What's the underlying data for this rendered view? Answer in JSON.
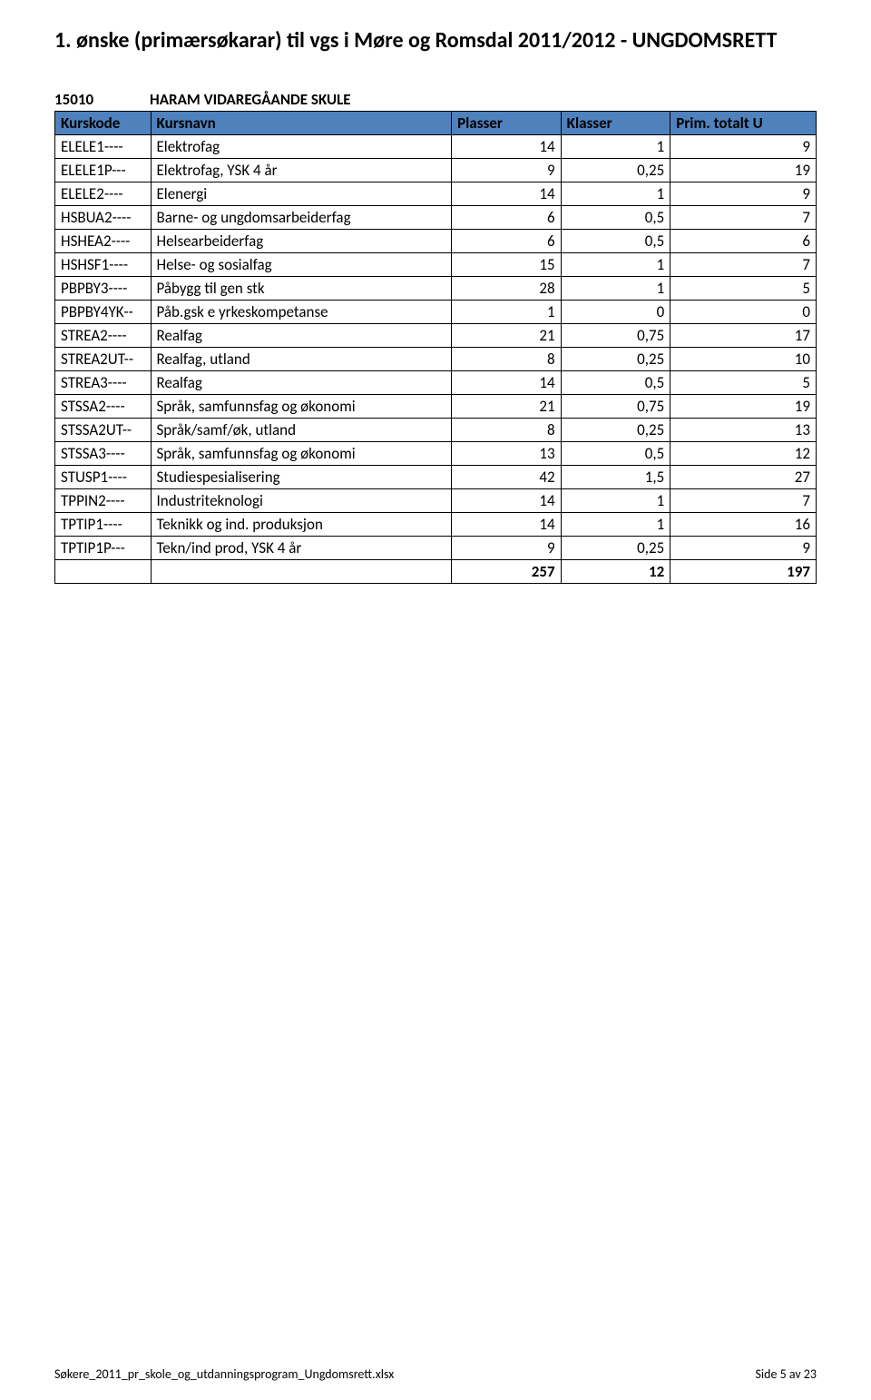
{
  "doc": {
    "title": "1. ønske (primærsøkarar) til vgs i Møre og Romsdal 2011/2012 - UNGDOMSRETT",
    "title_fontsize": 24,
    "title_weight": "bold",
    "school_code": "15010",
    "school_name": "HARAM VIDAREGÅANDE SKULE"
  },
  "colors": {
    "header_bg": "#4f81bd",
    "border": "#000000",
    "text": "#000000",
    "background": "#ffffff"
  },
  "table": {
    "columns": {
      "kurskode": "Kurskode",
      "kursnavn": "Kursnavn",
      "plasser": "Plasser",
      "klasser": "Klasser",
      "prim": "Prim. totalt U"
    },
    "rows": [
      {
        "kode": "ELELE1----",
        "navn": "Elektrofag",
        "plasser": "14",
        "klasser": "1",
        "prim": "9"
      },
      {
        "kode": "ELELE1P---",
        "navn": "Elektrofag, YSK 4 år",
        "plasser": "9",
        "klasser": "0,25",
        "prim": "19"
      },
      {
        "kode": "ELELE2----",
        "navn": "Elenergi",
        "plasser": "14",
        "klasser": "1",
        "prim": "9"
      },
      {
        "kode": "HSBUA2----",
        "navn": "Barne- og ungdomsarbeiderfag",
        "plasser": "6",
        "klasser": "0,5",
        "prim": "7"
      },
      {
        "kode": "HSHEA2----",
        "navn": "Helsearbeiderfag",
        "plasser": "6",
        "klasser": "0,5",
        "prim": "6"
      },
      {
        "kode": "HSHSF1----",
        "navn": "Helse- og sosialfag",
        "plasser": "15",
        "klasser": "1",
        "prim": "7"
      },
      {
        "kode": "PBPBY3----",
        "navn": "Påbygg til gen stk",
        "plasser": "28",
        "klasser": "1",
        "prim": "5"
      },
      {
        "kode": "PBPBY4YK--",
        "navn": "Påb.gsk e yrkeskompetanse",
        "plasser": "1",
        "klasser": "0",
        "prim": "0"
      },
      {
        "kode": "STREA2----",
        "navn": "Realfag",
        "plasser": "21",
        "klasser": "0,75",
        "prim": "17"
      },
      {
        "kode": "STREA2UT--",
        "navn": "Realfag, utland",
        "plasser": "8",
        "klasser": "0,25",
        "prim": "10"
      },
      {
        "kode": "STREA3----",
        "navn": "Realfag",
        "plasser": "14",
        "klasser": "0,5",
        "prim": "5"
      },
      {
        "kode": "STSSA2----",
        "navn": "Språk, samfunnsfag og økonomi",
        "plasser": "21",
        "klasser": "0,75",
        "prim": "19"
      },
      {
        "kode": "STSSA2UT--",
        "navn": "Språk/samf/øk, utland",
        "plasser": "8",
        "klasser": "0,25",
        "prim": "13"
      },
      {
        "kode": "STSSA3----",
        "navn": "Språk, samfunnsfag og økonomi",
        "plasser": "13",
        "klasser": "0,5",
        "prim": "12"
      },
      {
        "kode": "STUSP1----",
        "navn": "Studiespesialisering",
        "plasser": "42",
        "klasser": "1,5",
        "prim": "27"
      },
      {
        "kode": "TPPIN2----",
        "navn": "Industriteknologi",
        "plasser": "14",
        "klasser": "1",
        "prim": "7"
      },
      {
        "kode": "TPTIP1----",
        "navn": "Teknikk og ind. produksjon",
        "plasser": "14",
        "klasser": "1",
        "prim": "16"
      },
      {
        "kode": "TPTIP1P---",
        "navn": "Tekn/ind prod, YSK 4 år",
        "plasser": "9",
        "klasser": "0,25",
        "prim": "9"
      }
    ],
    "totals": {
      "plasser": "257",
      "klasser": "12",
      "prim": "197"
    }
  },
  "footer": {
    "left": "Søkere_2011_pr_skole_og_utdanningsprogram_Ungdomsrett.xlsx",
    "right": "Side 5 av 23"
  }
}
